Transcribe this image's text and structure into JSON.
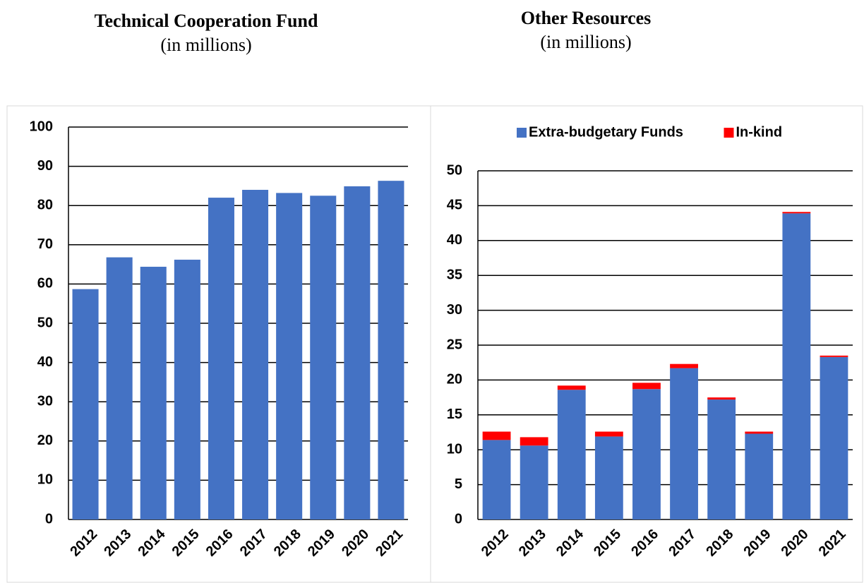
{
  "chart_data": [
    {
      "type": "bar",
      "title": "Technical Cooperation Fund",
      "subtitle": "(in millions)",
      "categories": [
        "2012",
        "2013",
        "2014",
        "2015",
        "2016",
        "2017",
        "2018",
        "2019",
        "2020",
        "2021"
      ],
      "values": [
        58.7,
        66.8,
        64.4,
        66.2,
        82.0,
        84.0,
        83.2,
        82.5,
        84.9,
        86.3
      ],
      "color": "#4472c4",
      "ylim": [
        0,
        100
      ],
      "yticks": [
        0,
        10,
        20,
        30,
        40,
        50,
        60,
        70,
        80,
        90,
        100
      ],
      "grid": true
    },
    {
      "type": "stacked_bar",
      "title": "Other Resources",
      "subtitle": "(in millions)",
      "categories": [
        "2012",
        "2013",
        "2014",
        "2015",
        "2016",
        "2017",
        "2018",
        "2019",
        "2020",
        "2021"
      ],
      "series": [
        {
          "name": "Extra-budgetary Funds",
          "color": "#4472c4",
          "values": [
            11.4,
            10.6,
            18.6,
            11.9,
            18.7,
            21.7,
            17.2,
            12.3,
            43.9,
            23.3
          ]
        },
        {
          "name": "In-kind",
          "color": "#ff0000",
          "values": [
            1.2,
            1.2,
            0.6,
            0.7,
            0.9,
            0.6,
            0.3,
            0.3,
            0.2,
            0.2
          ]
        }
      ],
      "ylim": [
        0,
        50
      ],
      "yticks": [
        0,
        5,
        10,
        15,
        20,
        25,
        30,
        35,
        40,
        45,
        50
      ],
      "grid": true,
      "legend": "top"
    }
  ]
}
